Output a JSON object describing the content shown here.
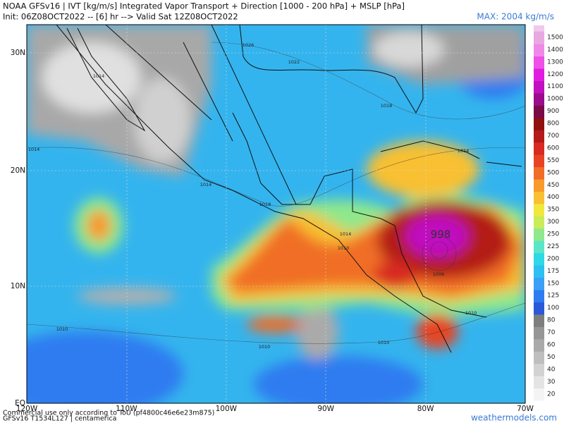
{
  "header": {
    "title": "NOAA GFSv16 | IVT [kg/m/s] Integrated Vapor Transport + Direction [1000 - 200 hPa] + MSLP [hPa]",
    "subtitle": "Init: 06Z08OCT2022 -- [6] hr --> Valid Sat 12Z08OCT2022",
    "max_label": "MAX: 2004 kg/m/s"
  },
  "map": {
    "lat_labels": [
      "30N",
      "20N",
      "10N",
      "EQ"
    ],
    "lon_labels": [
      "120W",
      "110W",
      "100W",
      "90W",
      "80W",
      "70W"
    ],
    "isobar_labels": [
      "1026",
      "1022",
      "1018",
      "1014",
      "1014",
      "1014",
      "1018",
      "1014",
      "1010",
      "1014",
      "1010",
      "1010",
      "1010",
      "1010",
      "1006",
      "998"
    ]
  },
  "colorbar": [
    {
      "label": "20",
      "color": "#f4f4f4"
    },
    {
      "label": "30",
      "color": "#e4e4e4"
    },
    {
      "label": "40",
      "color": "#d2d2d2"
    },
    {
      "label": "50",
      "color": "#bebebe"
    },
    {
      "label": "60",
      "color": "#aaaaaa"
    },
    {
      "label": "70",
      "color": "#969696"
    },
    {
      "label": "80",
      "color": "#7e7e7e"
    },
    {
      "label": "100",
      "color": "#2a5ad8"
    },
    {
      "label": "125",
      "color": "#2e7cf0"
    },
    {
      "label": "150",
      "color": "#3ca0f6"
    },
    {
      "label": "175",
      "color": "#2ec0f0"
    },
    {
      "label": "200",
      "color": "#2ed8e6"
    },
    {
      "label": "225",
      "color": "#5ce6c8"
    },
    {
      "label": "250",
      "color": "#8ee88c"
    },
    {
      "label": "300",
      "color": "#c8ec5a"
    },
    {
      "label": "350",
      "color": "#f0e83c"
    },
    {
      "label": "400",
      "color": "#f8c032"
    },
    {
      "label": "450",
      "color": "#f89a2c"
    },
    {
      "label": "500",
      "color": "#f06e28"
    },
    {
      "label": "550",
      "color": "#e84424"
    },
    {
      "label": "600",
      "color": "#d82a20"
    },
    {
      "label": "700",
      "color": "#b41a18"
    },
    {
      "label": "800",
      "color": "#901010"
    },
    {
      "label": "900",
      "color": "#7a0a48"
    },
    {
      "label": "1000",
      "color": "#9a0c8c"
    },
    {
      "label": "1100",
      "color": "#c010c0"
    },
    {
      "label": "1200",
      "color": "#e01ce0"
    },
    {
      "label": "1300",
      "color": "#ee50e8"
    },
    {
      "label": "1400",
      "color": "#f088e8"
    },
    {
      "label": "1500",
      "color": "#e8a8e0"
    }
  ],
  "footer": {
    "notice": "Commercial use only according to ToU (pf4800c46e6e23m875)",
    "model": "GFSv16 T1534L127 | centamerica",
    "site": "weathermodels.com"
  }
}
